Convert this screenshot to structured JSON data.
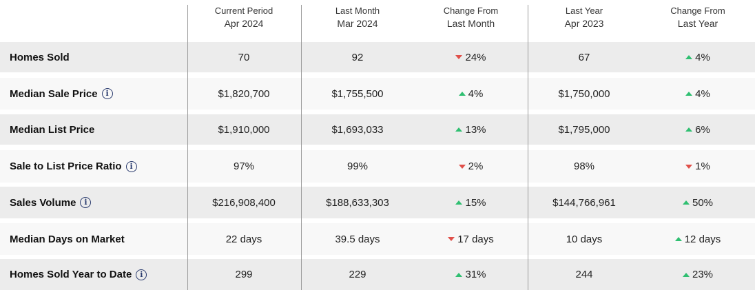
{
  "headers": [
    {
      "line1": "Current Period",
      "line2": "Apr 2024"
    },
    {
      "line1": "Last Month",
      "line2": "Mar 2024"
    },
    {
      "line1": "Change From",
      "line2": "Last Month"
    },
    {
      "line1": "Last Year",
      "line2": "Apr 2023"
    },
    {
      "line1": "Change From",
      "line2": "Last Year"
    }
  ],
  "rows": [
    {
      "label": "Homes Sold",
      "info": false,
      "current": "70",
      "last_month": "92",
      "chg_month": {
        "dir": "down",
        "text": "24%"
      },
      "last_year": "67",
      "chg_year": {
        "dir": "up",
        "text": "4%"
      }
    },
    {
      "label": "Median Sale Price",
      "info": true,
      "current": "$1,820,700",
      "last_month": "$1,755,500",
      "chg_month": {
        "dir": "up",
        "text": "4%"
      },
      "last_year": "$1,750,000",
      "chg_year": {
        "dir": "up",
        "text": "4%"
      }
    },
    {
      "label": "Median List Price",
      "info": false,
      "current": "$1,910,000",
      "last_month": "$1,693,033",
      "chg_month": {
        "dir": "up",
        "text": "13%"
      },
      "last_year": "$1,795,000",
      "chg_year": {
        "dir": "up",
        "text": "6%"
      }
    },
    {
      "label": "Sale to List Price Ratio",
      "info": true,
      "current": "97%",
      "last_month": "99%",
      "chg_month": {
        "dir": "down",
        "text": "2%"
      },
      "last_year": "98%",
      "chg_year": {
        "dir": "down",
        "text": "1%"
      }
    },
    {
      "label": "Sales Volume",
      "info": true,
      "current": "$216,908,400",
      "last_month": "$188,633,303",
      "chg_month": {
        "dir": "up",
        "text": "15%"
      },
      "last_year": "$144,766,961",
      "chg_year": {
        "dir": "up",
        "text": "50%"
      }
    },
    {
      "label": "Median Days on Market",
      "info": false,
      "current": "22 days",
      "last_month": "39.5 days",
      "chg_month": {
        "dir": "down",
        "text": "17 days"
      },
      "last_year": "10 days",
      "chg_year": {
        "dir": "up",
        "text": "12 days"
      }
    },
    {
      "label": "Homes Sold Year to Date",
      "info": true,
      "current": "299",
      "last_month": "229",
      "chg_month": {
        "dir": "up",
        "text": "31%"
      },
      "last_year": "244",
      "chg_year": {
        "dir": "up",
        "text": "23%"
      }
    }
  ],
  "info_glyph": "i",
  "colors": {
    "up": "#2fbf71",
    "down": "#e0504a",
    "shaded_row": "#ececec",
    "info_icon": "#2a3b6e"
  }
}
